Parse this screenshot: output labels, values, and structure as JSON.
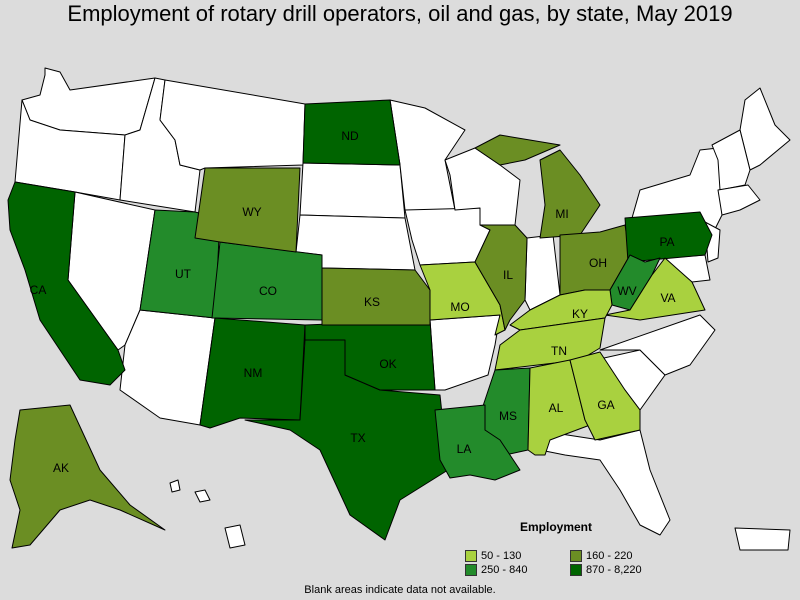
{
  "title": "Employment of rotary drill operators, oil and gas, by state, May 2019",
  "colors": {
    "bin1": "#a9d13f",
    "bin2": "#6b8e23",
    "bin3": "#238b2b",
    "bin4": "#006400",
    "na": "#ffffff"
  },
  "legend": {
    "title": "Employment",
    "items": [
      {
        "label": "50 - 130",
        "bin": "bin1"
      },
      {
        "label": "160 - 220",
        "bin": "bin2"
      },
      {
        "label": "250 - 840",
        "bin": "bin3"
      },
      {
        "label": "870 - 8,220",
        "bin": "bin4"
      }
    ]
  },
  "states": {
    "CA": "bin4",
    "UT": "bin3",
    "CO": "bin3",
    "NM": "bin4",
    "TX": "bin4",
    "OK": "bin4",
    "KS": "bin2",
    "WY": "bin2",
    "ND": "bin4",
    "MO": "bin1",
    "IL": "bin2",
    "MI": "bin2",
    "OH": "bin2",
    "PA": "bin4",
    "WV": "bin3",
    "VA": "bin1",
    "KY": "bin1",
    "TN": "bin1",
    "MS": "bin3",
    "LA": "bin3",
    "AL": "bin1",
    "GA": "bin1",
    "AK": "bin2"
  },
  "footnote": "Blank areas indicate data not available."
}
